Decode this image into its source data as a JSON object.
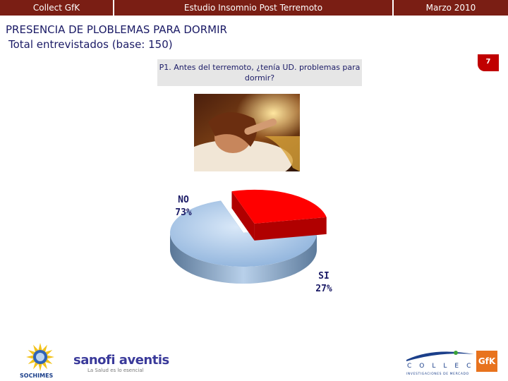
{
  "header": {
    "left": "Collect GfK",
    "center": "Estudio Insomnio Post Terremoto",
    "right": "Marzo 2010",
    "bar_color": "#7a1e14"
  },
  "slide_number": "7",
  "title": "PRESENCIA DE PLOBLEMAS PARA DORMIR",
  "subtitle": "Total entrevistados (base: 150)",
  "question": "P1. Antes del terremoto, ¿tenía UD. problemas para dormir?",
  "chart_data": {
    "type": "pie",
    "title": "",
    "slices": [
      {
        "name": "NO",
        "value": 73,
        "label": "73%",
        "color": "#a9c8ea"
      },
      {
        "name": "SI",
        "value": 27,
        "label": "27%",
        "color": "#ff0000"
      }
    ],
    "style": "3d-exploded",
    "legend": "none"
  },
  "logos": {
    "left_org": "SOCHIMES",
    "sponsor": "sanofi aventis",
    "sponsor_tagline": "La Salud es lo esencial",
    "right_word": "COLLECT",
    "right_sub": "INVESTIGACIONES DE MERCADO",
    "right_brand": "GfK"
  },
  "icons": [
    "sleeping-woman-photo",
    "sochimes-sun-logo",
    "collect-swoosh-logo"
  ]
}
